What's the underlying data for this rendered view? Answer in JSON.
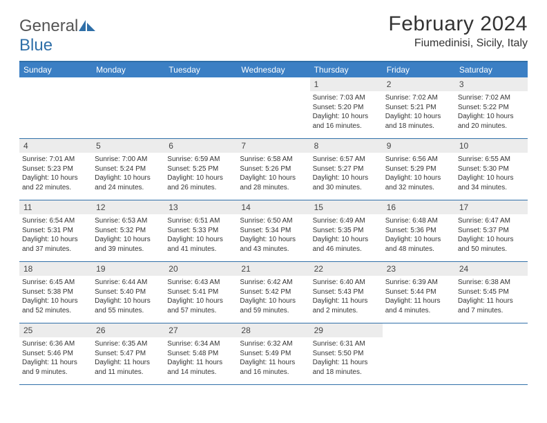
{
  "logo": {
    "text1": "General",
    "text2": "Blue"
  },
  "title": "February 2024",
  "location": "Fiumedinisi, Sicily, Italy",
  "dayNames": [
    "Sunday",
    "Monday",
    "Tuesday",
    "Wednesday",
    "Thursday",
    "Friday",
    "Saturday"
  ],
  "colors": {
    "headerBg": "#3b7fc4",
    "borderBlue": "#2f6fa8",
    "dayNumBg": "#ececec",
    "text": "#333333"
  },
  "weeks": [
    [
      {
        "n": "",
        "sr": "",
        "ss": "",
        "dl": ""
      },
      {
        "n": "",
        "sr": "",
        "ss": "",
        "dl": ""
      },
      {
        "n": "",
        "sr": "",
        "ss": "",
        "dl": ""
      },
      {
        "n": "",
        "sr": "",
        "ss": "",
        "dl": ""
      },
      {
        "n": "1",
        "sr": "Sunrise: 7:03 AM",
        "ss": "Sunset: 5:20 PM",
        "dl": "Daylight: 10 hours and 16 minutes."
      },
      {
        "n": "2",
        "sr": "Sunrise: 7:02 AM",
        "ss": "Sunset: 5:21 PM",
        "dl": "Daylight: 10 hours and 18 minutes."
      },
      {
        "n": "3",
        "sr": "Sunrise: 7:02 AM",
        "ss": "Sunset: 5:22 PM",
        "dl": "Daylight: 10 hours and 20 minutes."
      }
    ],
    [
      {
        "n": "4",
        "sr": "Sunrise: 7:01 AM",
        "ss": "Sunset: 5:23 PM",
        "dl": "Daylight: 10 hours and 22 minutes."
      },
      {
        "n": "5",
        "sr": "Sunrise: 7:00 AM",
        "ss": "Sunset: 5:24 PM",
        "dl": "Daylight: 10 hours and 24 minutes."
      },
      {
        "n": "6",
        "sr": "Sunrise: 6:59 AM",
        "ss": "Sunset: 5:25 PM",
        "dl": "Daylight: 10 hours and 26 minutes."
      },
      {
        "n": "7",
        "sr": "Sunrise: 6:58 AM",
        "ss": "Sunset: 5:26 PM",
        "dl": "Daylight: 10 hours and 28 minutes."
      },
      {
        "n": "8",
        "sr": "Sunrise: 6:57 AM",
        "ss": "Sunset: 5:27 PM",
        "dl": "Daylight: 10 hours and 30 minutes."
      },
      {
        "n": "9",
        "sr": "Sunrise: 6:56 AM",
        "ss": "Sunset: 5:29 PM",
        "dl": "Daylight: 10 hours and 32 minutes."
      },
      {
        "n": "10",
        "sr": "Sunrise: 6:55 AM",
        "ss": "Sunset: 5:30 PM",
        "dl": "Daylight: 10 hours and 34 minutes."
      }
    ],
    [
      {
        "n": "11",
        "sr": "Sunrise: 6:54 AM",
        "ss": "Sunset: 5:31 PM",
        "dl": "Daylight: 10 hours and 37 minutes."
      },
      {
        "n": "12",
        "sr": "Sunrise: 6:53 AM",
        "ss": "Sunset: 5:32 PM",
        "dl": "Daylight: 10 hours and 39 minutes."
      },
      {
        "n": "13",
        "sr": "Sunrise: 6:51 AM",
        "ss": "Sunset: 5:33 PM",
        "dl": "Daylight: 10 hours and 41 minutes."
      },
      {
        "n": "14",
        "sr": "Sunrise: 6:50 AM",
        "ss": "Sunset: 5:34 PM",
        "dl": "Daylight: 10 hours and 43 minutes."
      },
      {
        "n": "15",
        "sr": "Sunrise: 6:49 AM",
        "ss": "Sunset: 5:35 PM",
        "dl": "Daylight: 10 hours and 46 minutes."
      },
      {
        "n": "16",
        "sr": "Sunrise: 6:48 AM",
        "ss": "Sunset: 5:36 PM",
        "dl": "Daylight: 10 hours and 48 minutes."
      },
      {
        "n": "17",
        "sr": "Sunrise: 6:47 AM",
        "ss": "Sunset: 5:37 PM",
        "dl": "Daylight: 10 hours and 50 minutes."
      }
    ],
    [
      {
        "n": "18",
        "sr": "Sunrise: 6:45 AM",
        "ss": "Sunset: 5:38 PM",
        "dl": "Daylight: 10 hours and 52 minutes."
      },
      {
        "n": "19",
        "sr": "Sunrise: 6:44 AM",
        "ss": "Sunset: 5:40 PM",
        "dl": "Daylight: 10 hours and 55 minutes."
      },
      {
        "n": "20",
        "sr": "Sunrise: 6:43 AM",
        "ss": "Sunset: 5:41 PM",
        "dl": "Daylight: 10 hours and 57 minutes."
      },
      {
        "n": "21",
        "sr": "Sunrise: 6:42 AM",
        "ss": "Sunset: 5:42 PM",
        "dl": "Daylight: 10 hours and 59 minutes."
      },
      {
        "n": "22",
        "sr": "Sunrise: 6:40 AM",
        "ss": "Sunset: 5:43 PM",
        "dl": "Daylight: 11 hours and 2 minutes."
      },
      {
        "n": "23",
        "sr": "Sunrise: 6:39 AM",
        "ss": "Sunset: 5:44 PM",
        "dl": "Daylight: 11 hours and 4 minutes."
      },
      {
        "n": "24",
        "sr": "Sunrise: 6:38 AM",
        "ss": "Sunset: 5:45 PM",
        "dl": "Daylight: 11 hours and 7 minutes."
      }
    ],
    [
      {
        "n": "25",
        "sr": "Sunrise: 6:36 AM",
        "ss": "Sunset: 5:46 PM",
        "dl": "Daylight: 11 hours and 9 minutes."
      },
      {
        "n": "26",
        "sr": "Sunrise: 6:35 AM",
        "ss": "Sunset: 5:47 PM",
        "dl": "Daylight: 11 hours and 11 minutes."
      },
      {
        "n": "27",
        "sr": "Sunrise: 6:34 AM",
        "ss": "Sunset: 5:48 PM",
        "dl": "Daylight: 11 hours and 14 minutes."
      },
      {
        "n": "28",
        "sr": "Sunrise: 6:32 AM",
        "ss": "Sunset: 5:49 PM",
        "dl": "Daylight: 11 hours and 16 minutes."
      },
      {
        "n": "29",
        "sr": "Sunrise: 6:31 AM",
        "ss": "Sunset: 5:50 PM",
        "dl": "Daylight: 11 hours and 18 minutes."
      },
      {
        "n": "",
        "sr": "",
        "ss": "",
        "dl": ""
      },
      {
        "n": "",
        "sr": "",
        "ss": "",
        "dl": ""
      }
    ]
  ]
}
